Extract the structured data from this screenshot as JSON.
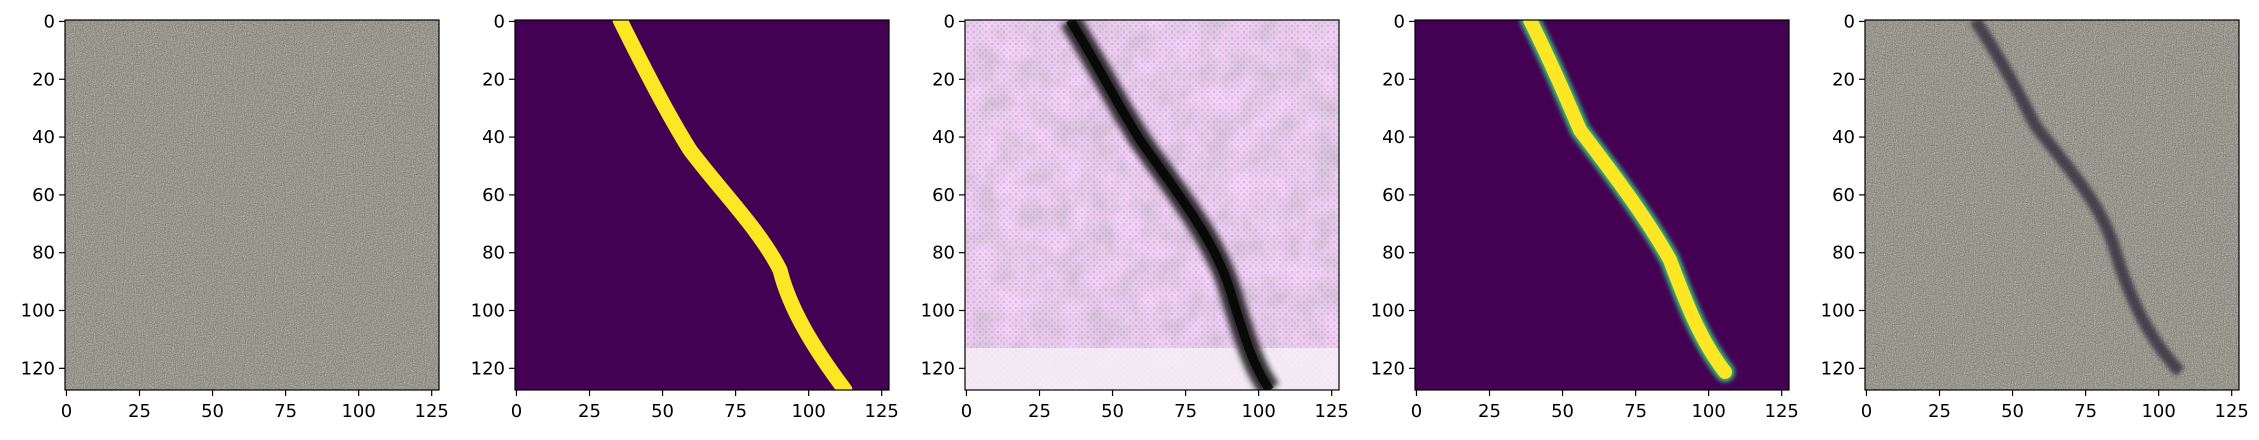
{
  "figure": {
    "panel_count": 5,
    "x_ticks": [
      "0",
      "25",
      "50",
      "75",
      "100",
      "125"
    ],
    "y_ticks": [
      "0",
      "20",
      "40",
      "60",
      "80",
      "100",
      "120"
    ],
    "panels": [
      {
        "content": "grayscale concrete texture",
        "kind": "photo"
      },
      {
        "content": "binary crack mask",
        "kind": "mask",
        "colors": {
          "background": "#440154",
          "foreground": "#fde725"
        }
      },
      {
        "content": "generated crack image",
        "kind": "generated",
        "tint": "#e7a7e8"
      },
      {
        "content": "soft crack mask",
        "kind": "mask-soft",
        "colors": {
          "background": "#440154",
          "foreground": "#fde725",
          "edge": "#35b779"
        }
      },
      {
        "content": "crack overlaid on concrete",
        "kind": "photo-crack"
      }
    ]
  },
  "colors": {
    "axis": "#000000",
    "viridis_low": "#440154",
    "viridis_high": "#fde725"
  }
}
